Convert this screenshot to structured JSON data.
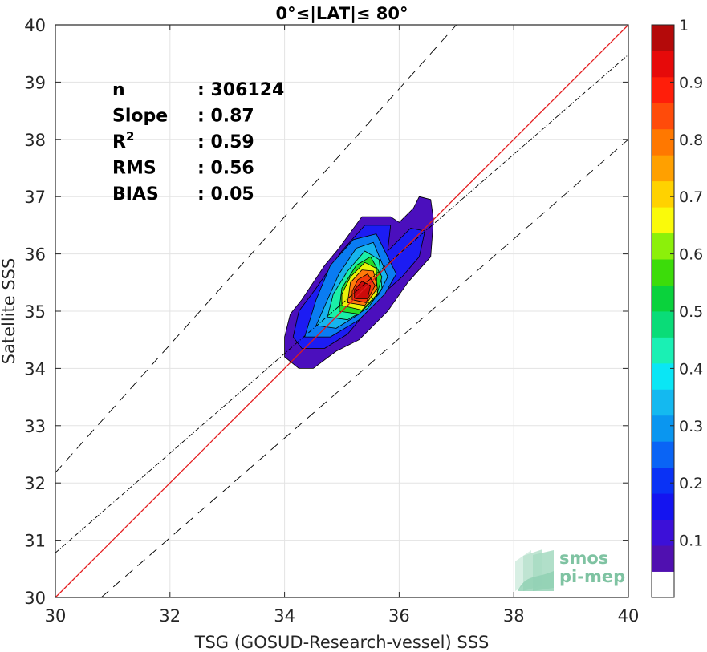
{
  "chart_data": {
    "type": "scatter",
    "title": "0°≤|LAT|≤ 80°",
    "xlabel": "TSG (GOSUD-Research-vessel) SSS",
    "ylabel": "Satellite SSS",
    "xlim": [
      30,
      40
    ],
    "ylim": [
      30,
      40
    ],
    "xticks": [
      "30",
      "32",
      "34",
      "36",
      "38",
      "40"
    ],
    "yticks": [
      "30",
      "31",
      "32",
      "33",
      "34",
      "35",
      "36",
      "37",
      "38",
      "39",
      "40"
    ],
    "grid": true,
    "stats": [
      {
        "label": "n",
        "sep": ": ",
        "value": "306124"
      },
      {
        "label": "Slope",
        "sep": ": ",
        "value": "0.87"
      },
      {
        "label": "R",
        "sup": "2",
        "sep": ": ",
        "value": "0.59"
      },
      {
        "label": "RMS",
        "sep": ": ",
        "value": "0.56"
      },
      {
        "label": "BIAS",
        "sep": ": ",
        "value": "0.05"
      }
    ],
    "lines": [
      {
        "kind": "one-to-one",
        "color": "#e41a1c",
        "style": "solid",
        "points": [
          [
            30,
            30
          ],
          [
            40,
            40
          ]
        ]
      },
      {
        "kind": "regression-fit",
        "color": "#000000",
        "style": "dash-dot",
        "points": [
          [
            30,
            30.78
          ],
          [
            40,
            39.48
          ]
        ]
      },
      {
        "kind": "upper-bound",
        "color": "#000000",
        "style": "dashed",
        "points": [
          [
            30,
            32.18
          ],
          [
            37.0,
            40.0
          ]
        ]
      },
      {
        "kind": "lower-bound",
        "color": "#000000",
        "style": "dashed",
        "points": [
          [
            30.8,
            30.0
          ],
          [
            40,
            38.0
          ]
        ]
      }
    ],
    "density_levels": [
      {
        "level": 0.05,
        "color": "#4b0fbd",
        "polygon": [
          [
            34.0,
            34.55
          ],
          [
            34.0,
            34.2
          ],
          [
            34.25,
            34.0
          ],
          [
            34.5,
            34.0
          ],
          [
            34.9,
            34.3
          ],
          [
            35.3,
            34.5
          ],
          [
            35.8,
            35.0
          ],
          [
            36.15,
            35.5
          ],
          [
            36.55,
            35.95
          ],
          [
            36.6,
            36.6
          ],
          [
            36.55,
            36.95
          ],
          [
            36.35,
            37.0
          ],
          [
            36.25,
            36.8
          ],
          [
            36.0,
            36.55
          ],
          [
            35.85,
            36.65
          ],
          [
            35.35,
            36.65
          ],
          [
            34.95,
            36.1
          ],
          [
            34.7,
            35.8
          ],
          [
            34.3,
            35.2
          ],
          [
            34.1,
            34.95
          ]
        ]
      },
      {
        "level": 0.15,
        "color": "#1c1cf3",
        "polygon": [
          [
            34.15,
            34.55
          ],
          [
            34.3,
            34.35
          ],
          [
            34.7,
            34.35
          ],
          [
            35.1,
            34.6
          ],
          [
            35.6,
            35.2
          ],
          [
            36.05,
            35.6
          ],
          [
            36.35,
            35.95
          ],
          [
            36.45,
            36.4
          ],
          [
            36.2,
            36.45
          ],
          [
            35.8,
            36.05
          ],
          [
            35.85,
            36.5
          ],
          [
            35.4,
            36.5
          ],
          [
            35.0,
            36.05
          ],
          [
            34.55,
            35.4
          ],
          [
            34.25,
            35.0
          ]
        ]
      },
      {
        "level": 0.25,
        "color": "#0a7cf2",
        "polygon": [
          [
            34.35,
            34.55
          ],
          [
            34.8,
            34.55
          ],
          [
            35.3,
            34.85
          ],
          [
            35.75,
            35.3
          ],
          [
            35.95,
            35.65
          ],
          [
            35.6,
            36.35
          ],
          [
            35.2,
            36.25
          ],
          [
            34.8,
            35.8
          ],
          [
            34.55,
            35.2
          ]
        ]
      },
      {
        "level": 0.35,
        "color": "#16b4ee",
        "polygon": [
          [
            34.55,
            34.75
          ],
          [
            34.9,
            34.7
          ],
          [
            35.3,
            34.95
          ],
          [
            35.65,
            35.3
          ],
          [
            35.8,
            35.6
          ],
          [
            35.55,
            36.2
          ],
          [
            35.25,
            36.1
          ],
          [
            34.95,
            35.65
          ],
          [
            34.75,
            35.2
          ]
        ]
      },
      {
        "level": 0.45,
        "color": "#1af0a8",
        "polygon": [
          [
            34.75,
            34.9
          ],
          [
            35.1,
            34.85
          ],
          [
            35.45,
            35.05
          ],
          [
            35.7,
            35.4
          ],
          [
            35.65,
            35.9
          ],
          [
            35.4,
            36.05
          ],
          [
            35.1,
            35.7
          ],
          [
            34.85,
            35.3
          ]
        ]
      },
      {
        "level": 0.55,
        "color": "#26dc26",
        "polygon": [
          [
            34.95,
            35.0
          ],
          [
            35.3,
            34.95
          ],
          [
            35.6,
            35.25
          ],
          [
            35.7,
            35.6
          ],
          [
            35.5,
            35.95
          ],
          [
            35.25,
            35.8
          ],
          [
            35.0,
            35.4
          ]
        ]
      },
      {
        "level": 0.65,
        "color": "#e8f40a",
        "polygon": [
          [
            35.0,
            35.1
          ],
          [
            35.35,
            35.02
          ],
          [
            35.62,
            35.3
          ],
          [
            35.6,
            35.75
          ],
          [
            35.4,
            35.85
          ],
          [
            35.15,
            35.6
          ],
          [
            35.0,
            35.3
          ]
        ]
      },
      {
        "level": 0.75,
        "color": "#ff7a0a",
        "polygon": [
          [
            35.1,
            35.15
          ],
          [
            35.4,
            35.1
          ],
          [
            35.62,
            35.4
          ],
          [
            35.55,
            35.7
          ],
          [
            35.35,
            35.72
          ],
          [
            35.15,
            35.5
          ]
        ]
      },
      {
        "level": 0.85,
        "color": "#f43b0a",
        "polygon": [
          [
            35.18,
            35.2
          ],
          [
            35.42,
            35.15
          ],
          [
            35.58,
            35.45
          ],
          [
            35.45,
            35.65
          ],
          [
            35.28,
            35.55
          ],
          [
            35.18,
            35.35
          ]
        ]
      },
      {
        "level": 0.9,
        "color": "#cc0a0a",
        "polygon": [
          [
            35.22,
            35.22
          ],
          [
            35.45,
            35.22
          ],
          [
            35.5,
            35.45
          ],
          [
            35.35,
            35.52
          ],
          [
            35.22,
            35.38
          ]
        ]
      }
    ],
    "colorbar": {
      "range": [
        0,
        1
      ],
      "ticks": [
        "0.1",
        "0.2",
        "0.3",
        "0.4",
        "0.5",
        "0.6",
        "0.7",
        "0.8",
        "0.9",
        "1"
      ],
      "colors": [
        "#ffffff",
        "#5010b0",
        "#3c10d8",
        "#1414f0",
        "#0a32f5",
        "#0a64f5",
        "#0a96f0",
        "#14b9f0",
        "#0ae6f5",
        "#1af0b4",
        "#0adc78",
        "#0ad23c",
        "#3cdc0a",
        "#8cf00a",
        "#fafa0a",
        "#ffd200",
        "#ffa000",
        "#ff7800",
        "#ff4b0a",
        "#ff1e0a",
        "#e60a0a",
        "#b40a0a"
      ]
    }
  },
  "logo": {
    "line1": "smos",
    "line2": "pi-mep"
  }
}
